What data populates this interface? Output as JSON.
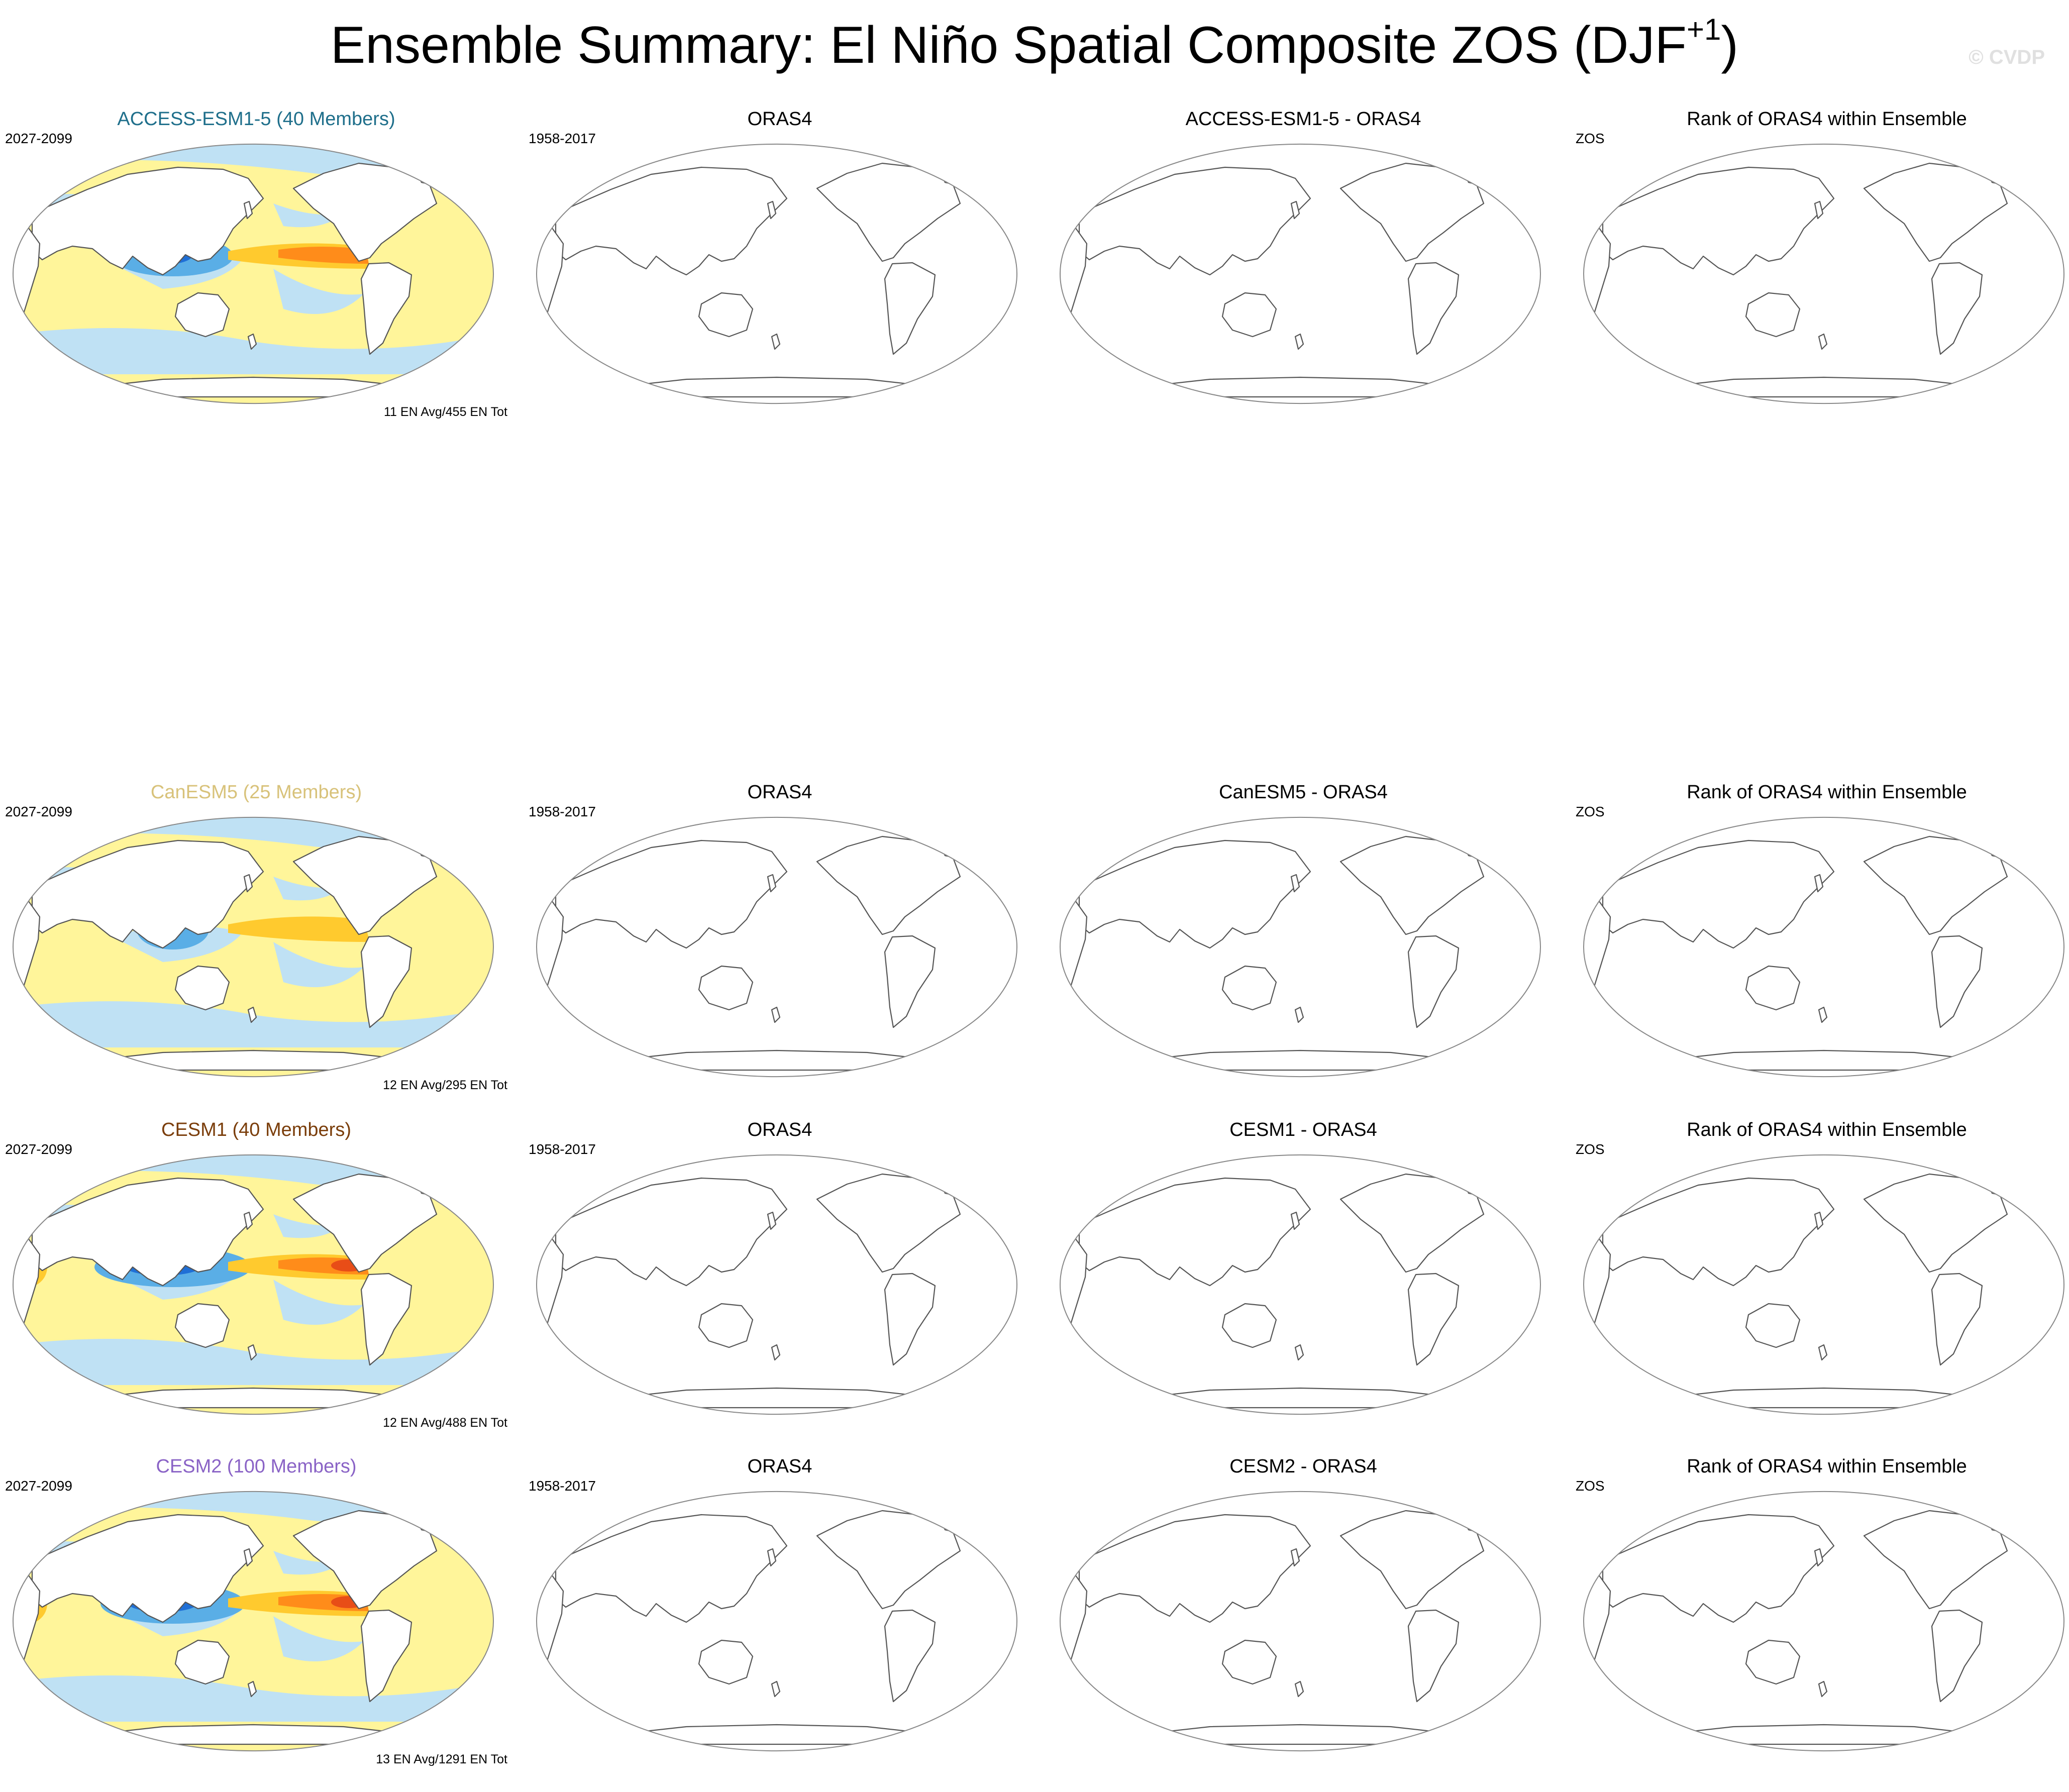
{
  "title": {
    "main": "Ensemble Summary: El Niño Spatial Composite ZOS (DJF",
    "superscript": "+1",
    "close": ")",
    "watermark": "© CVDP"
  },
  "colors": {
    "access_title": "#1f6f8b",
    "canesm_title": "#d8c27a",
    "cesm1_title": "#7a3d0a",
    "cesm2_title": "#8a63c6",
    "coast": "#555555",
    "yellow": "#fff59a",
    "lightblue": "#bfe1f4",
    "blue": "#5aaee6",
    "darkblue": "#1f6fd6",
    "purple": "#3b2cc9",
    "orange": "#ffca2e",
    "darkorange": "#ff8c1a",
    "red": "#e84d17"
  },
  "rows": [
    {
      "panels": [
        {
          "title": "ACCESS-ESM1-5 (40 Members)",
          "left": "2027-2099",
          "right": "11 EN Avg/455 EN Tot",
          "filled": true,
          "title_color": "access_title"
        },
        {
          "title": "ORAS4",
          "left": "1958-2017",
          "right": "",
          "filled": false
        },
        {
          "title": "ACCESS-ESM1-5 - ORAS4",
          "left": "",
          "right": "",
          "filled": false
        },
        {
          "title": "Rank of ORAS4 within Ensemble",
          "left": "ZOS",
          "right": "",
          "filled": false
        }
      ]
    },
    {
      "panels": [
        {
          "title": "CanESM5 (25 Members)",
          "left": "2027-2099",
          "right": "12 EN Avg/295 EN Tot",
          "filled": true,
          "title_color": "canesm_title"
        },
        {
          "title": "ORAS4",
          "left": "1958-2017",
          "right": "",
          "filled": false
        },
        {
          "title": "CanESM5 - ORAS4",
          "left": "",
          "right": "",
          "filled": false
        },
        {
          "title": "Rank of ORAS4 within Ensemble",
          "left": "ZOS",
          "right": "",
          "filled": false
        }
      ]
    },
    {
      "panels": [
        {
          "title": "CESM1 (40 Members)",
          "left": "2027-2099",
          "right": "12 EN Avg/488 EN Tot",
          "filled": true,
          "title_color": "cesm1_title"
        },
        {
          "title": "ORAS4",
          "left": "1958-2017",
          "right": "",
          "filled": false
        },
        {
          "title": "CESM1 - ORAS4",
          "left": "",
          "right": "",
          "filled": false
        },
        {
          "title": "Rank of ORAS4 within Ensemble",
          "left": "ZOS",
          "right": "",
          "filled": false
        }
      ]
    },
    {
      "panels": [
        {
          "title": "CESM2 (100 Members)",
          "left": "2027-2099",
          "right": "13 EN Avg/1291 EN Tot",
          "filled": true,
          "title_color": "cesm2_title"
        },
        {
          "title": "ORAS4",
          "left": "1958-2017",
          "right": "",
          "filled": false
        },
        {
          "title": "CESM2 - ORAS4",
          "left": "",
          "right": "",
          "filled": false
        },
        {
          "title": "Rank of ORAS4 within Ensemble",
          "left": "ZOS",
          "right": "",
          "filled": false
        }
      ]
    }
  ]
}
